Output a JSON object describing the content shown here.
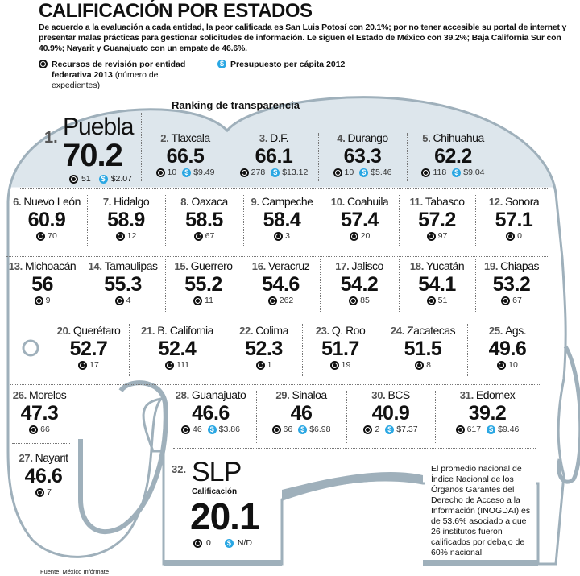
{
  "header": {
    "title": "CALIFICACIÓN POR ESTADOS",
    "intro": "De acuerdo a la evaluación a cada entidad, la peor calificada es San Luis Potosí con 20.1%; por no tener accesible su portal de internet y presentar malas prácticas para gestionar solicitudes de información. Le siguen el Estado de México con 39.2%; Baja California Sur con 40.9%;  Nayarit y Guanajuato con un empate de 46.6%."
  },
  "legend": {
    "expedientes_bold": "Recursos de revisión por entidad federativa 2013",
    "expedientes_light": "(número de expedientes)",
    "presupuesto": "Presupuesto per cápita 2012"
  },
  "ranking_title": "Ranking de transparencia",
  "colors": {
    "budget_icon": "#2aa7e3",
    "elephant_fill": "#dde6ec",
    "elephant_outline": "#9fb0bb"
  },
  "states": [
    {
      "rank": "1.",
      "name": "Puebla",
      "score": "70.2",
      "exp": "51",
      "budget": "$2.07"
    },
    {
      "rank": "2.",
      "name": "Tlaxcala",
      "score": "66.5",
      "exp": "10",
      "budget": "$9.49"
    },
    {
      "rank": "3.",
      "name": "D.F.",
      "score": "66.1",
      "exp": "278",
      "budget": "$13.12"
    },
    {
      "rank": "4.",
      "name": "Durango",
      "score": "63.3",
      "exp": "10",
      "budget": "$5.46"
    },
    {
      "rank": "5.",
      "name": "Chihuahua",
      "score": "62.2",
      "exp": "118",
      "budget": "$9.04"
    },
    {
      "rank": "6.",
      "name": "Nuevo León",
      "score": "60.9",
      "exp": "70"
    },
    {
      "rank": "7.",
      "name": "Hidalgo",
      "score": "58.9",
      "exp": "12"
    },
    {
      "rank": "8.",
      "name": "Oaxaca",
      "score": "58.5",
      "exp": "67"
    },
    {
      "rank": "9.",
      "name": "Campeche",
      "score": "58.4",
      "exp": "3"
    },
    {
      "rank": "10.",
      "name": "Coahuila",
      "score": "57.4",
      "exp": "20"
    },
    {
      "rank": "11.",
      "name": "Tabasco",
      "score": "57.2",
      "exp": "97"
    },
    {
      "rank": "12.",
      "name": "Sonora",
      "score": "57.1",
      "exp": "0"
    },
    {
      "rank": "13.",
      "name": "Michoacán",
      "score": "56",
      "exp": "9"
    },
    {
      "rank": "14.",
      "name": "Tamaulipas",
      "score": "55.3",
      "exp": "4"
    },
    {
      "rank": "15.",
      "name": "Guerrero",
      "score": "55.2",
      "exp": "11"
    },
    {
      "rank": "16.",
      "name": "Veracruz",
      "score": "54.6",
      "exp": "262"
    },
    {
      "rank": "17.",
      "name": "Jalisco",
      "score": "54.2",
      "exp": "85"
    },
    {
      "rank": "18.",
      "name": "Yucatán",
      "score": "54.1",
      "exp": "51"
    },
    {
      "rank": "19.",
      "name": "Chiapas",
      "score": "53.2",
      "exp": "67"
    },
    {
      "rank": "20.",
      "name": "Querétaro",
      "score": "52.7",
      "exp": "17"
    },
    {
      "rank": "21.",
      "name": "B. California",
      "score": "52.4",
      "exp": "111"
    },
    {
      "rank": "22.",
      "name": "Colima",
      "score": "52.3",
      "exp": "1"
    },
    {
      "rank": "23.",
      "name": "Q. Roo",
      "score": "51.7",
      "exp": "19"
    },
    {
      "rank": "24.",
      "name": "Zacatecas",
      "score": "51.5",
      "exp": "8"
    },
    {
      "rank": "25.",
      "name": "Ags.",
      "score": "49.6",
      "exp": "10"
    },
    {
      "rank": "26.",
      "name": "Morelos",
      "score": "47.3",
      "exp": "66"
    },
    {
      "rank": "27.",
      "name": "Nayarit",
      "score": "46.6",
      "exp": "7"
    },
    {
      "rank": "28.",
      "name": "Guanajuato",
      "score": "46.6",
      "exp": "46",
      "budget": "$3.86"
    },
    {
      "rank": "29.",
      "name": "Sinaloa",
      "score": "46",
      "exp": "66",
      "budget": "$6.98"
    },
    {
      "rank": "30.",
      "name": "BCS",
      "score": "40.9",
      "exp": "2",
      "budget": "$7.37"
    },
    {
      "rank": "31.",
      "name": "Edomex",
      "score": "39.2",
      "exp": "617",
      "budget": "$9.46"
    }
  ],
  "slp": {
    "rank": "32.",
    "name": "SLP",
    "label": "Calificación",
    "score": "20.1",
    "exp": "0",
    "budget": "N/D"
  },
  "note": "El promedio nacional de Índice Nacional de los Órganos Garantes del Derecho de Acceso a la Información (INOGDAI) es de 53.6% asociado a que 26 institutos fueron calificados por debajo de 60% nacional",
  "source": "Fuente: México Infórmate"
}
